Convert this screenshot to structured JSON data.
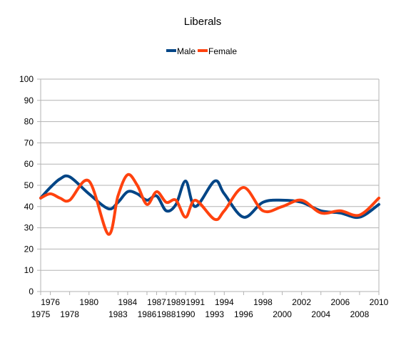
{
  "chart_data": {
    "type": "line",
    "title": "Liberals",
    "xlabel": "",
    "ylabel": "",
    "ylim": [
      0,
      100
    ],
    "yticks": [
      0,
      10,
      20,
      30,
      40,
      50,
      60,
      70,
      80,
      90,
      100
    ],
    "xlim": [
      1975,
      2010
    ],
    "xticks_upper": [
      "1976",
      "1980",
      "1984",
      "1987",
      "1989",
      "1991",
      "1994",
      "1998",
      "2002",
      "2006",
      "2010"
    ],
    "xticks_lower": [
      "1975",
      "1978",
      "1983",
      "1986",
      "1988",
      "1990",
      "1993",
      "1996",
      "2000",
      "2004",
      "2008"
    ],
    "grid": "horizontal",
    "legend_position": "top",
    "x": [
      1975,
      1976,
      1977,
      1978,
      1980,
      1982,
      1983,
      1984,
      1985,
      1986,
      1987,
      1988,
      1989,
      1990,
      1991,
      1993,
      1994,
      1996,
      1998,
      2000,
      2002,
      2004,
      2006,
      2008,
      2010
    ],
    "series": [
      {
        "name": "Male",
        "color": "#004586",
        "values": [
          44,
          49,
          53,
          54,
          46,
          39,
          42,
          47,
          46,
          43,
          45,
          38,
          41,
          52,
          40,
          52,
          46,
          35,
          42,
          43,
          42,
          38,
          37,
          35,
          41
        ]
      },
      {
        "name": "Female",
        "color": "#ff420e",
        "values": [
          44,
          46,
          44,
          43,
          52,
          27,
          45,
          55,
          50,
          41,
          47,
          42,
          43,
          35,
          43,
          34,
          38,
          49,
          38,
          40,
          43,
          37,
          38,
          36,
          44
        ]
      }
    ]
  }
}
